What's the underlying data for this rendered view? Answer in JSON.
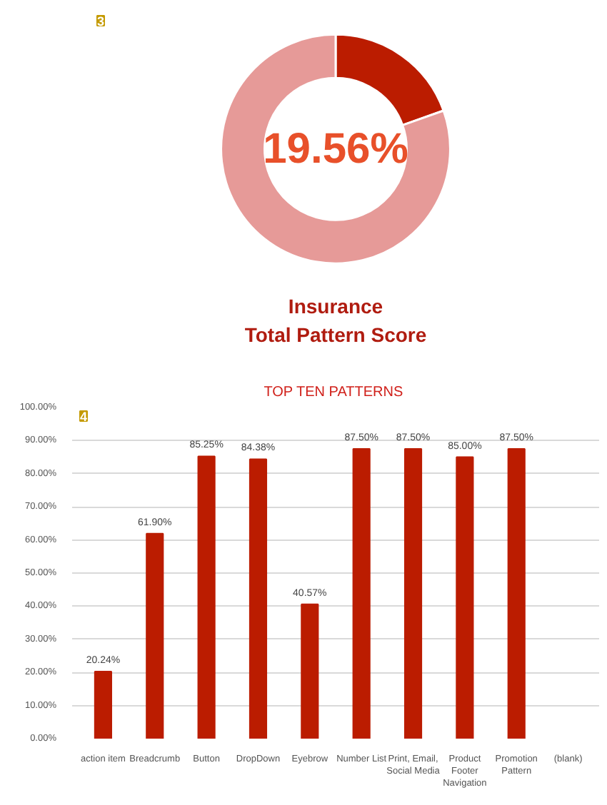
{
  "chart_data": [
    {
      "type": "donut",
      "title": "Insurance\nTotal Pattern Score",
      "annotations": [
        "3"
      ],
      "categories": [
        null,
        null
      ],
      "values": [
        19.56,
        80.44
      ],
      "colors": [
        "#bb1c00",
        "#e69a98"
      ],
      "value_labels": [
        "19.56%",
        null
      ]
    },
    {
      "type": "bar",
      "title": "TOP  TEN PATTERNS",
      "annotations": [
        "4"
      ],
      "categories": [
        "action item",
        "Breadcrumb",
        "Button",
        "DropDown",
        "Eyebrow",
        "Number List",
        "Print, Email, Social Media",
        "Product Footer Navigation",
        "Promotion Pattern",
        "(blank)"
      ],
      "values": [
        20.24,
        61.9,
        85.25,
        84.38,
        40.57,
        87.5,
        87.5,
        85.0,
        87.5,
        null
      ],
      "color": "#bb1c00",
      "value_labels": [
        "20.24%",
        "61.90%",
        "85.25%",
        "84.38%",
        "40.57%",
        "87.50%",
        "87.50%",
        "85.00%",
        "87.50%",
        null
      ],
      "ylim": [
        0,
        100
      ],
      "yticks": [
        {
          "value": 0,
          "label": "0.00%"
        },
        {
          "value": 10,
          "label": "10.00%"
        },
        {
          "value": 20,
          "label": "20.00%"
        },
        {
          "value": 30,
          "label": "30.00%"
        },
        {
          "value": 40,
          "label": "40.00%"
        },
        {
          "value": 50,
          "label": "50.00%"
        },
        {
          "value": 60,
          "label": "60.00%"
        },
        {
          "value": 70,
          "label": "70.00%"
        },
        {
          "value": 80,
          "label": "80.00%"
        },
        {
          "value": 90,
          "label": "90.00%"
        },
        {
          "value": 100,
          "label": "100.00%"
        }
      ],
      "grid": "y"
    }
  ]
}
